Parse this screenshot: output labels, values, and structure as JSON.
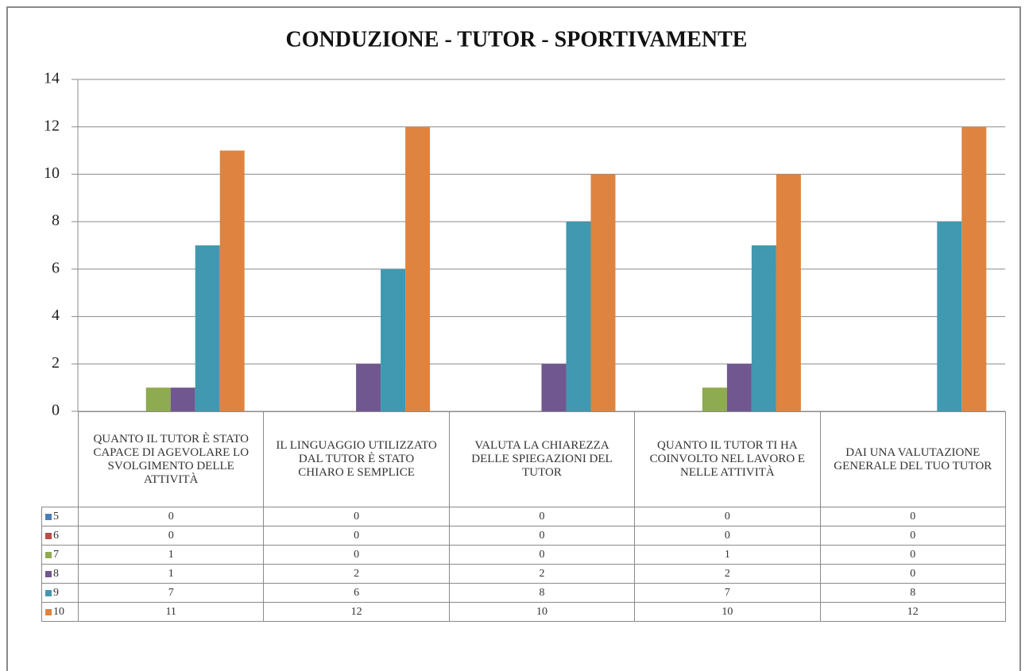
{
  "chart_data": {
    "type": "bar",
    "title": "CONDUZIONE - TUTOR - SPORTIVAMENTE",
    "categories": [
      "QUANTO IL TUTOR È STATO CAPACE DI AGEVOLARE LO SVOLGIMENTO DELLE ATTIVITÀ",
      "IL LINGUAGGIO UTILIZZATO DAL TUTOR È STATO CHIARO E SEMPLICE",
      "VALUTA LA CHIAREZZA DELLE SPIEGAZIONI DEL TUTOR",
      "QUANTO IL TUTOR TI HA COINVOLTO NEL LAVORO E NELLE ATTIVITÀ",
      "DAI UNA VALUTAZIONE GENERALE DEL TUO TUTOR"
    ],
    "series": [
      {
        "name": "5",
        "color": "#4a7ebb",
        "values": [
          0,
          0,
          0,
          0,
          0
        ]
      },
      {
        "name": "6",
        "color": "#be4b48",
        "values": [
          0,
          0,
          0,
          0,
          0
        ]
      },
      {
        "name": "7",
        "color": "#8fab4f",
        "values": [
          1,
          0,
          0,
          1,
          0
        ]
      },
      {
        "name": "8",
        "color": "#71578f",
        "values": [
          1,
          2,
          2,
          2,
          0
        ]
      },
      {
        "name": "9",
        "color": "#4099b0",
        "values": [
          7,
          6,
          8,
          7,
          8
        ]
      },
      {
        "name": "10",
        "color": "#de843f",
        "values": [
          11,
          12,
          10,
          10,
          12
        ]
      }
    ],
    "ylim": [
      0,
      14
    ],
    "yticks": [
      0,
      2,
      4,
      6,
      8,
      10,
      12,
      14
    ],
    "grid": true
  }
}
